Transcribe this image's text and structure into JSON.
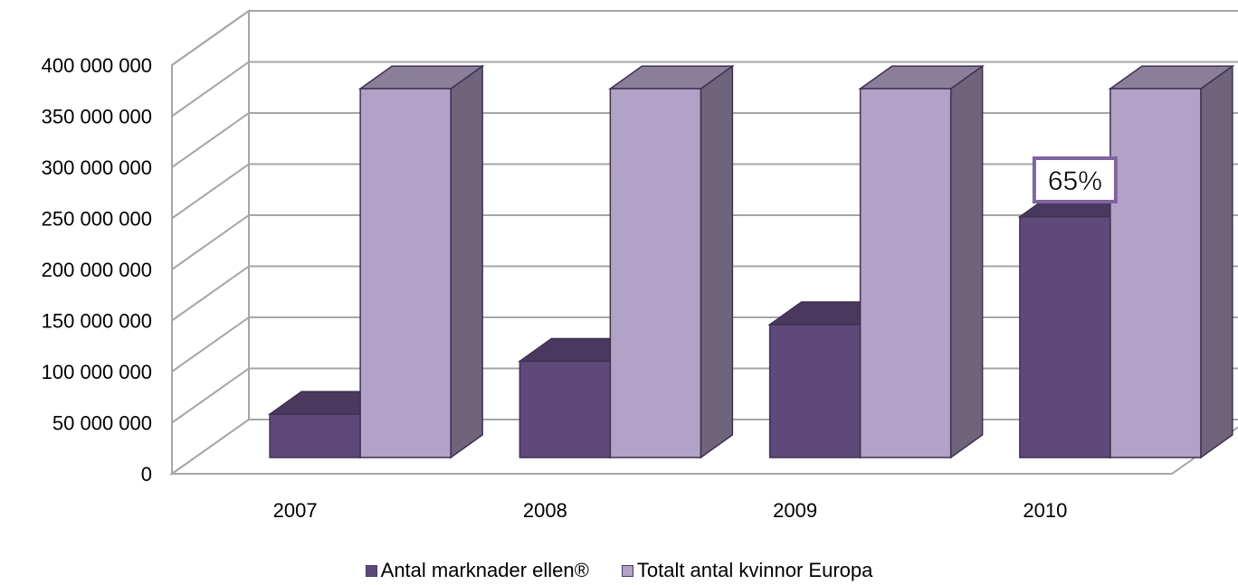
{
  "chart_data": {
    "type": "bar",
    "bar_style": "3d-clustered",
    "categories": [
      "2007",
      "2008",
      "2009",
      "2010"
    ],
    "series": [
      {
        "name": "Antal marknader ellen®",
        "values": [
          45000000,
          100000000,
          138000000,
          250000000
        ],
        "color": "#5f497a"
      },
      {
        "name": "Totalt antal kvinnor Europa",
        "values": [
          383000000,
          383000000,
          383000000,
          383000000
        ],
        "color": "#b2a2c7"
      }
    ],
    "ylim": [
      0,
      400000000
    ],
    "yticks": [
      "0",
      "50 000 000",
      "100 000 000",
      "150 000 000",
      "200 000 000",
      "250 000 000",
      "300 000 000",
      "350 000 000",
      "400 000 000"
    ],
    "grid": true,
    "legend_position": "bottom",
    "annotations": [
      {
        "text": "65%",
        "category": "2010"
      }
    ]
  }
}
